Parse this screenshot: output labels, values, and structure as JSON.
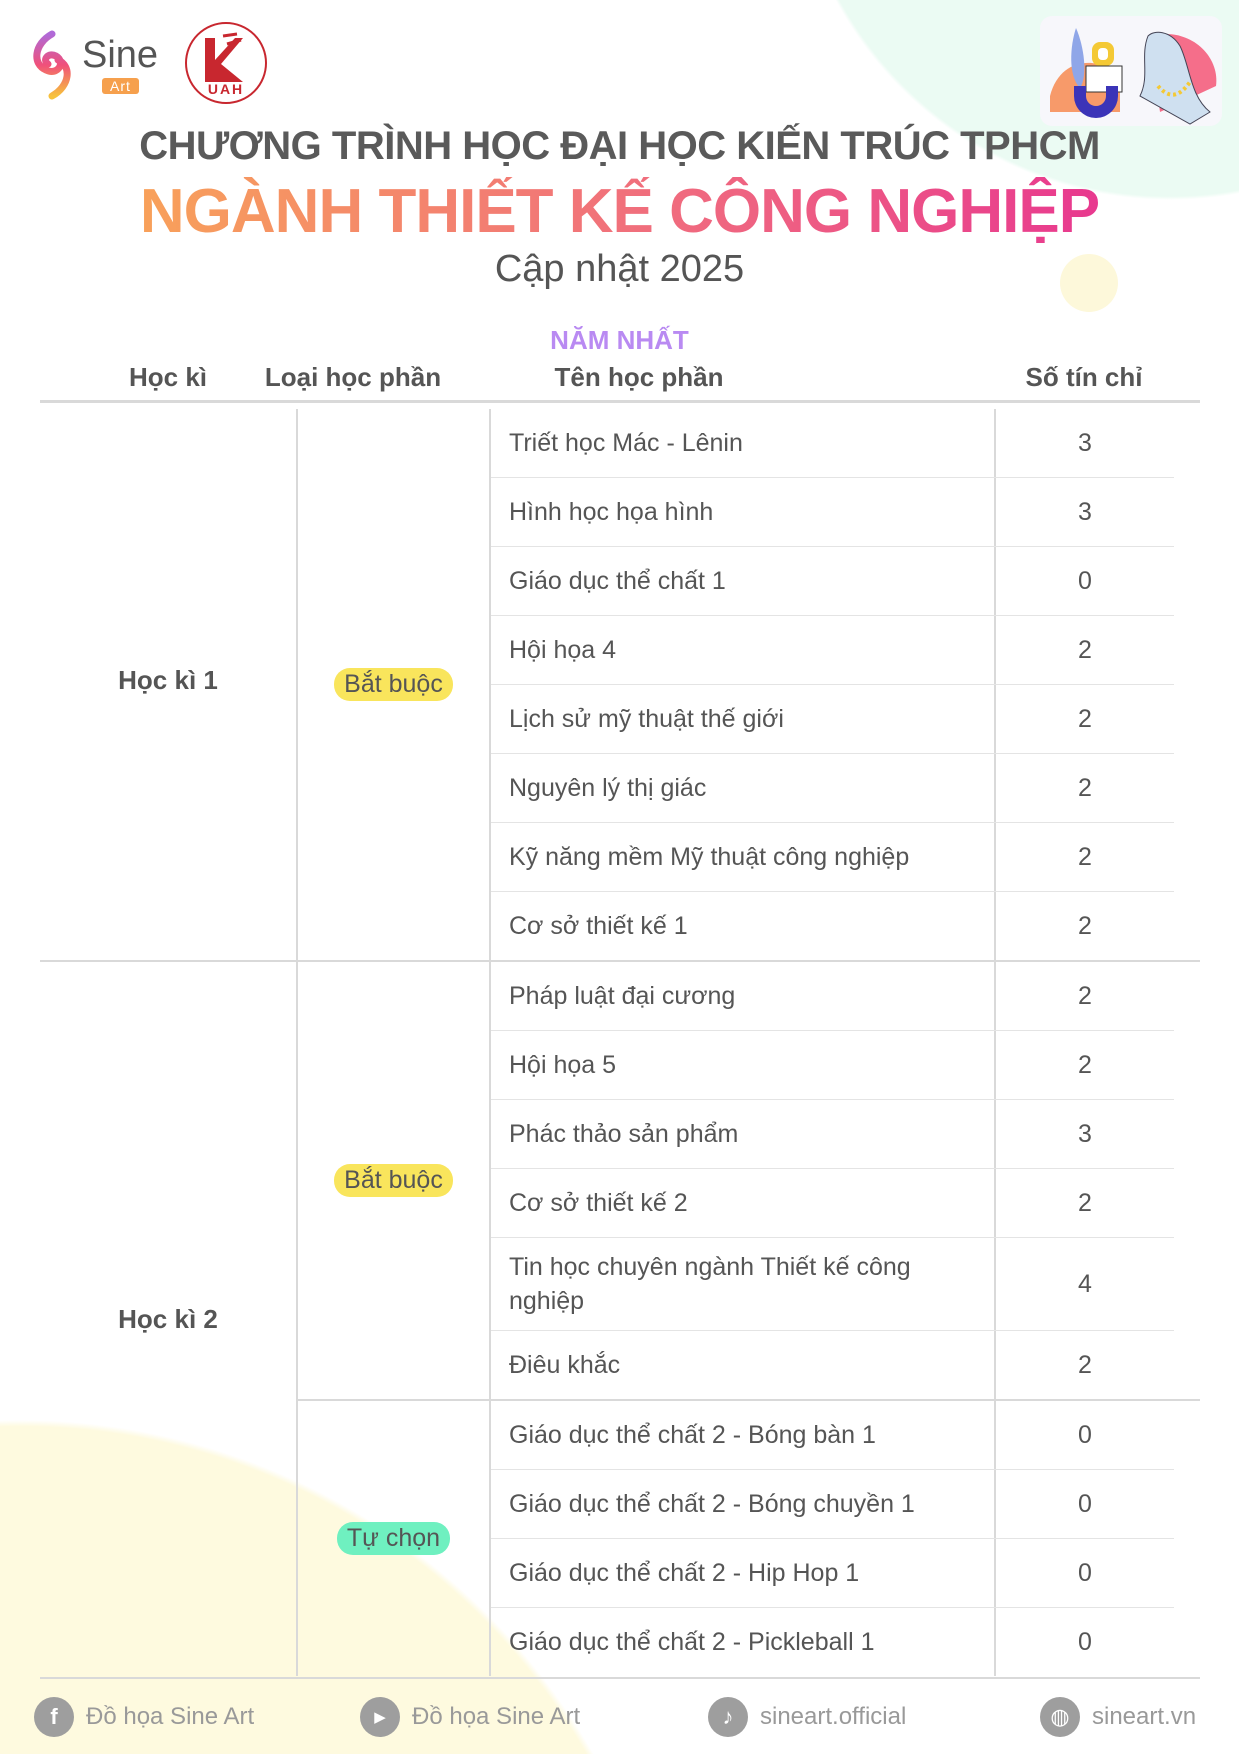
{
  "brand": {
    "sine_name": "Sine",
    "sine_sub": "Art",
    "uah_text": "UAH"
  },
  "header": {
    "title": "CHƯƠNG TRÌNH HỌC ĐẠI HỌC KIẾN TRÚC TPHCM",
    "major": "NGÀNH THIẾT KẾ CÔNG NGHIỆP",
    "subtitle": "Cập nhật 2025",
    "year": "NĂM NHẤT"
  },
  "colors": {
    "required_badge": "#f9e55c",
    "elective_badge": "#6ff0c0",
    "year": "#b98af2"
  },
  "table": {
    "columns": [
      "Học kì",
      "Loại học phần",
      "Tên học phần",
      "Số tín chỉ"
    ],
    "semesters": [
      {
        "label": "Học kì 1",
        "groups": [
          {
            "type": "Bắt buộc",
            "kind": "required",
            "courses": [
              {
                "name": "Triết học Mác - Lênin",
                "credits": "3"
              },
              {
                "name": "Hình học họa hình",
                "credits": "3"
              },
              {
                "name": "Giáo dục thể chất 1",
                "credits": "0"
              },
              {
                "name": "Hội họa 4",
                "credits": "2"
              },
              {
                "name": "Lịch sử mỹ thuật thế giới",
                "credits": "2"
              },
              {
                "name": "Nguyên lý thị giác",
                "credits": "2"
              },
              {
                "name": "Kỹ năng mềm Mỹ thuật công nghiệp",
                "credits": "2"
              },
              {
                "name": "Cơ sở thiết kế 1",
                "credits": "2"
              }
            ]
          }
        ]
      },
      {
        "label": "Học kì 2",
        "groups": [
          {
            "type": "Bắt buộc",
            "kind": "required",
            "courses": [
              {
                "name": "Pháp luật đại cương",
                "credits": "2"
              },
              {
                "name": "Hội họa 5",
                "credits": "2"
              },
              {
                "name": "Phác thảo sản phẩm",
                "credits": "3"
              },
              {
                "name": "Cơ sở thiết kế 2",
                "credits": "2"
              },
              {
                "name": "Tin học chuyên ngành Thiết kế công nghiệp",
                "credits": "4"
              },
              {
                "name": "Điêu khắc",
                "credits": "2"
              }
            ]
          },
          {
            "type": "Tự chọn",
            "kind": "elective",
            "courses": [
              {
                "name": "Giáo dục thể chất 2 - Bóng bàn 1",
                "credits": "0"
              },
              {
                "name": "Giáo dục thể chất 2 - Bóng chuyền 1",
                "credits": "0"
              },
              {
                "name": "Giáo dục thể chất 2 - Hip Hop 1",
                "credits": "0"
              },
              {
                "name": "Giáo dục thể chất 2 - Pickleball 1",
                "credits": "0"
              }
            ]
          }
        ]
      }
    ]
  },
  "footer": [
    {
      "icon": "facebook-icon",
      "label": "Đồ họa Sine Art"
    },
    {
      "icon": "youtube-icon",
      "label": "Đồ họa Sine Art"
    },
    {
      "icon": "tiktok-icon",
      "label": "sineart.official"
    },
    {
      "icon": "globe-icon",
      "label": "sineart.vn"
    }
  ]
}
